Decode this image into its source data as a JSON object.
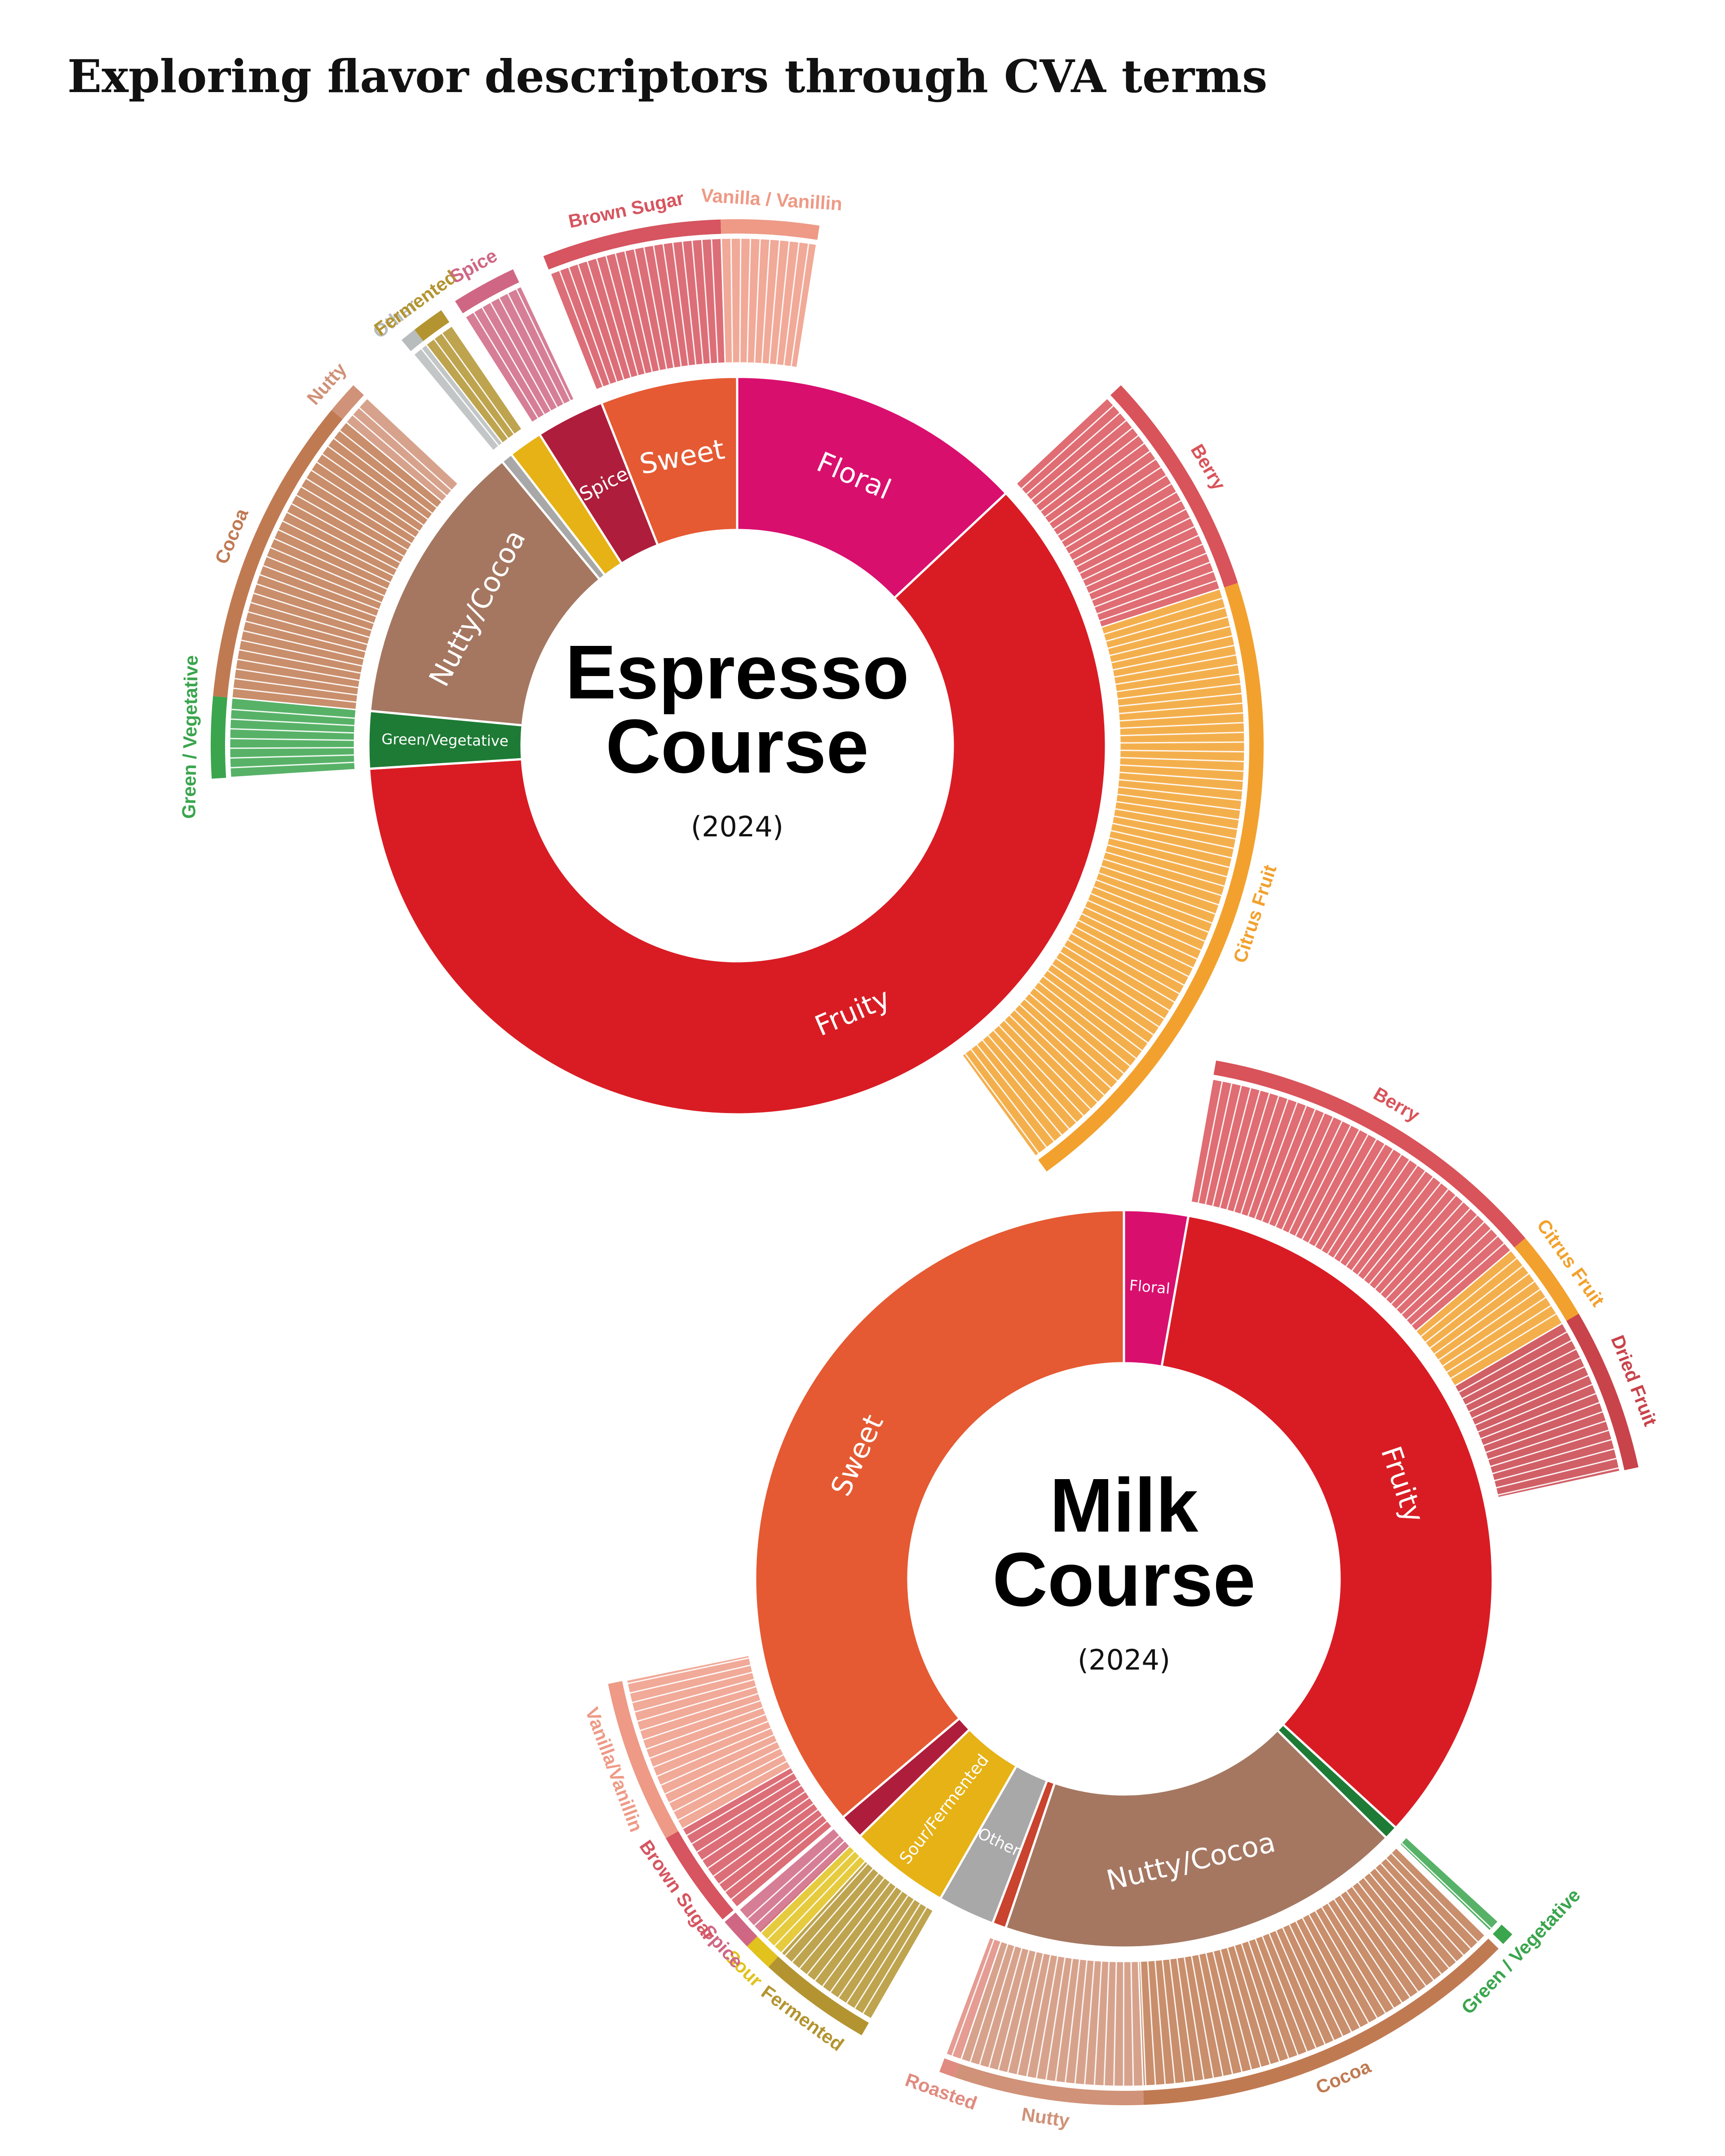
{
  "title": "Exploring flavor descriptors through CVA terms",
  "chart_data": [
    {
      "type": "sunburst",
      "title_lines": [
        "Espresso",
        "Course"
      ],
      "subtitle": "(2024)",
      "segments": [
        {
          "name": "Floral",
          "color": "#d90f6e",
          "value": 13,
          "children": []
        },
        {
          "name": "Fruity",
          "color": "#d91c24",
          "value": 61,
          "children": [
            {
              "name": "Berry",
              "color": "#d9535a",
              "value": 7
            },
            {
              "name": "Citrus Fruit",
              "color": "#f2a12e",
              "value": 20
            }
          ]
        },
        {
          "name": "Green/Vegetative",
          "color": "#1e7b35",
          "value": 2.5,
          "children": [
            {
              "name": "Green / Vegetative",
              "color": "#3aa54d",
              "value": 2.5
            }
          ]
        },
        {
          "name": "Nutty/Cocoa",
          "color": "#a57761",
          "value": 12.5,
          "children": [
            {
              "name": "Cocoa",
              "color": "#c07a52",
              "value": 9.5
            },
            {
              "name": "Nutty",
              "color": "#d09278",
              "value": 1
            }
          ]
        },
        {
          "name": null,
          "color": "#a8a8a8",
          "value": 0.5,
          "children": [
            {
              "name": "Other",
              "color": "#b8bcbc",
              "value": 0.5
            }
          ]
        },
        {
          "name": null,
          "color": "#e6b215",
          "value": 1.5,
          "children": [
            {
              "name": "Fermented",
              "color": "#b39430",
              "value": 1
            }
          ]
        },
        {
          "name": "Spice",
          "color": "#ae1e3c",
          "value": 3,
          "children": [
            {
              "name": "Spice",
              "color": "#cf6784",
              "value": 2
            }
          ]
        },
        {
          "name": "Sweet",
          "color": "#e55a33",
          "value": 6,
          "children": [
            {
              "name": "Brown Sugar",
              "color": "#d65560",
              "value": 5.5
            },
            {
              "name": "Vanilla / Vanillin",
              "color": "#ee9a86",
              "value": 3
            }
          ]
        }
      ]
    },
    {
      "type": "sunburst",
      "title_lines": [
        "Milk",
        "Course"
      ],
      "subtitle": "(2024)",
      "segments": [
        {
          "name": "Floral",
          "color": "#d90f6e",
          "value": 2.8,
          "children": []
        },
        {
          "name": "Fruity",
          "color": "#d91c24",
          "value": 34,
          "children": [
            {
              "name": "Berry",
              "color": "#d9535a",
              "value": 11
            },
            {
              "name": "Citrus Fruit",
              "color": "#f2a12e",
              "value": 2.8
            },
            {
              "name": "Dried Fruit",
              "color": "#c9434b",
              "value": 5
            }
          ]
        },
        {
          "name": null,
          "color": "#1e7b35",
          "value": 0.6,
          "children": [
            {
              "name": "Green / Vegetative",
              "color": "#3aa54d",
              "value": 0.4
            }
          ]
        },
        {
          "name": "Nutty/Cocoa",
          "color": "#a57761",
          "value": 17.8,
          "children": [
            {
              "name": "Cocoa",
              "color": "#c07a52",
              "value": 12
            },
            {
              "name": "Nutty",
              "color": "#d09278",
              "value": 5.8
            }
          ]
        },
        {
          "name": null,
          "color": "#c9432f",
          "value": 0.6,
          "children": [
            {
              "name": "Roasted",
              "color": "#e08b80",
              "value": 0.5
            }
          ]
        },
        {
          "name": "Other",
          "color": "#a8a8a8",
          "value": 2.5,
          "children": []
        },
        {
          "name": "Sour/Fermented",
          "color": "#e6b215",
          "value": 4.4,
          "children": [
            {
              "name": "Fermented",
              "color": "#b39430",
              "value": 3.5
            },
            {
              "name": "Sour",
              "color": "#e2c21c",
              "value": 1
            }
          ]
        },
        {
          "name": null,
          "color": "#ae1e3c",
          "value": 1.1,
          "children": [
            {
              "name": "Spice",
              "color": "#cf6784",
              "value": 1
            }
          ]
        },
        {
          "name": "Sweet",
          "color": "#e55a33",
          "value": 36.2,
          "children": [
            {
              "name": "Brown Sugar",
              "color": "#d65560",
              "value": 3
            },
            {
              "name": "Vanilla/Vanillin",
              "color": "#ee9a86",
              "value": 5
            }
          ]
        }
      ]
    }
  ]
}
